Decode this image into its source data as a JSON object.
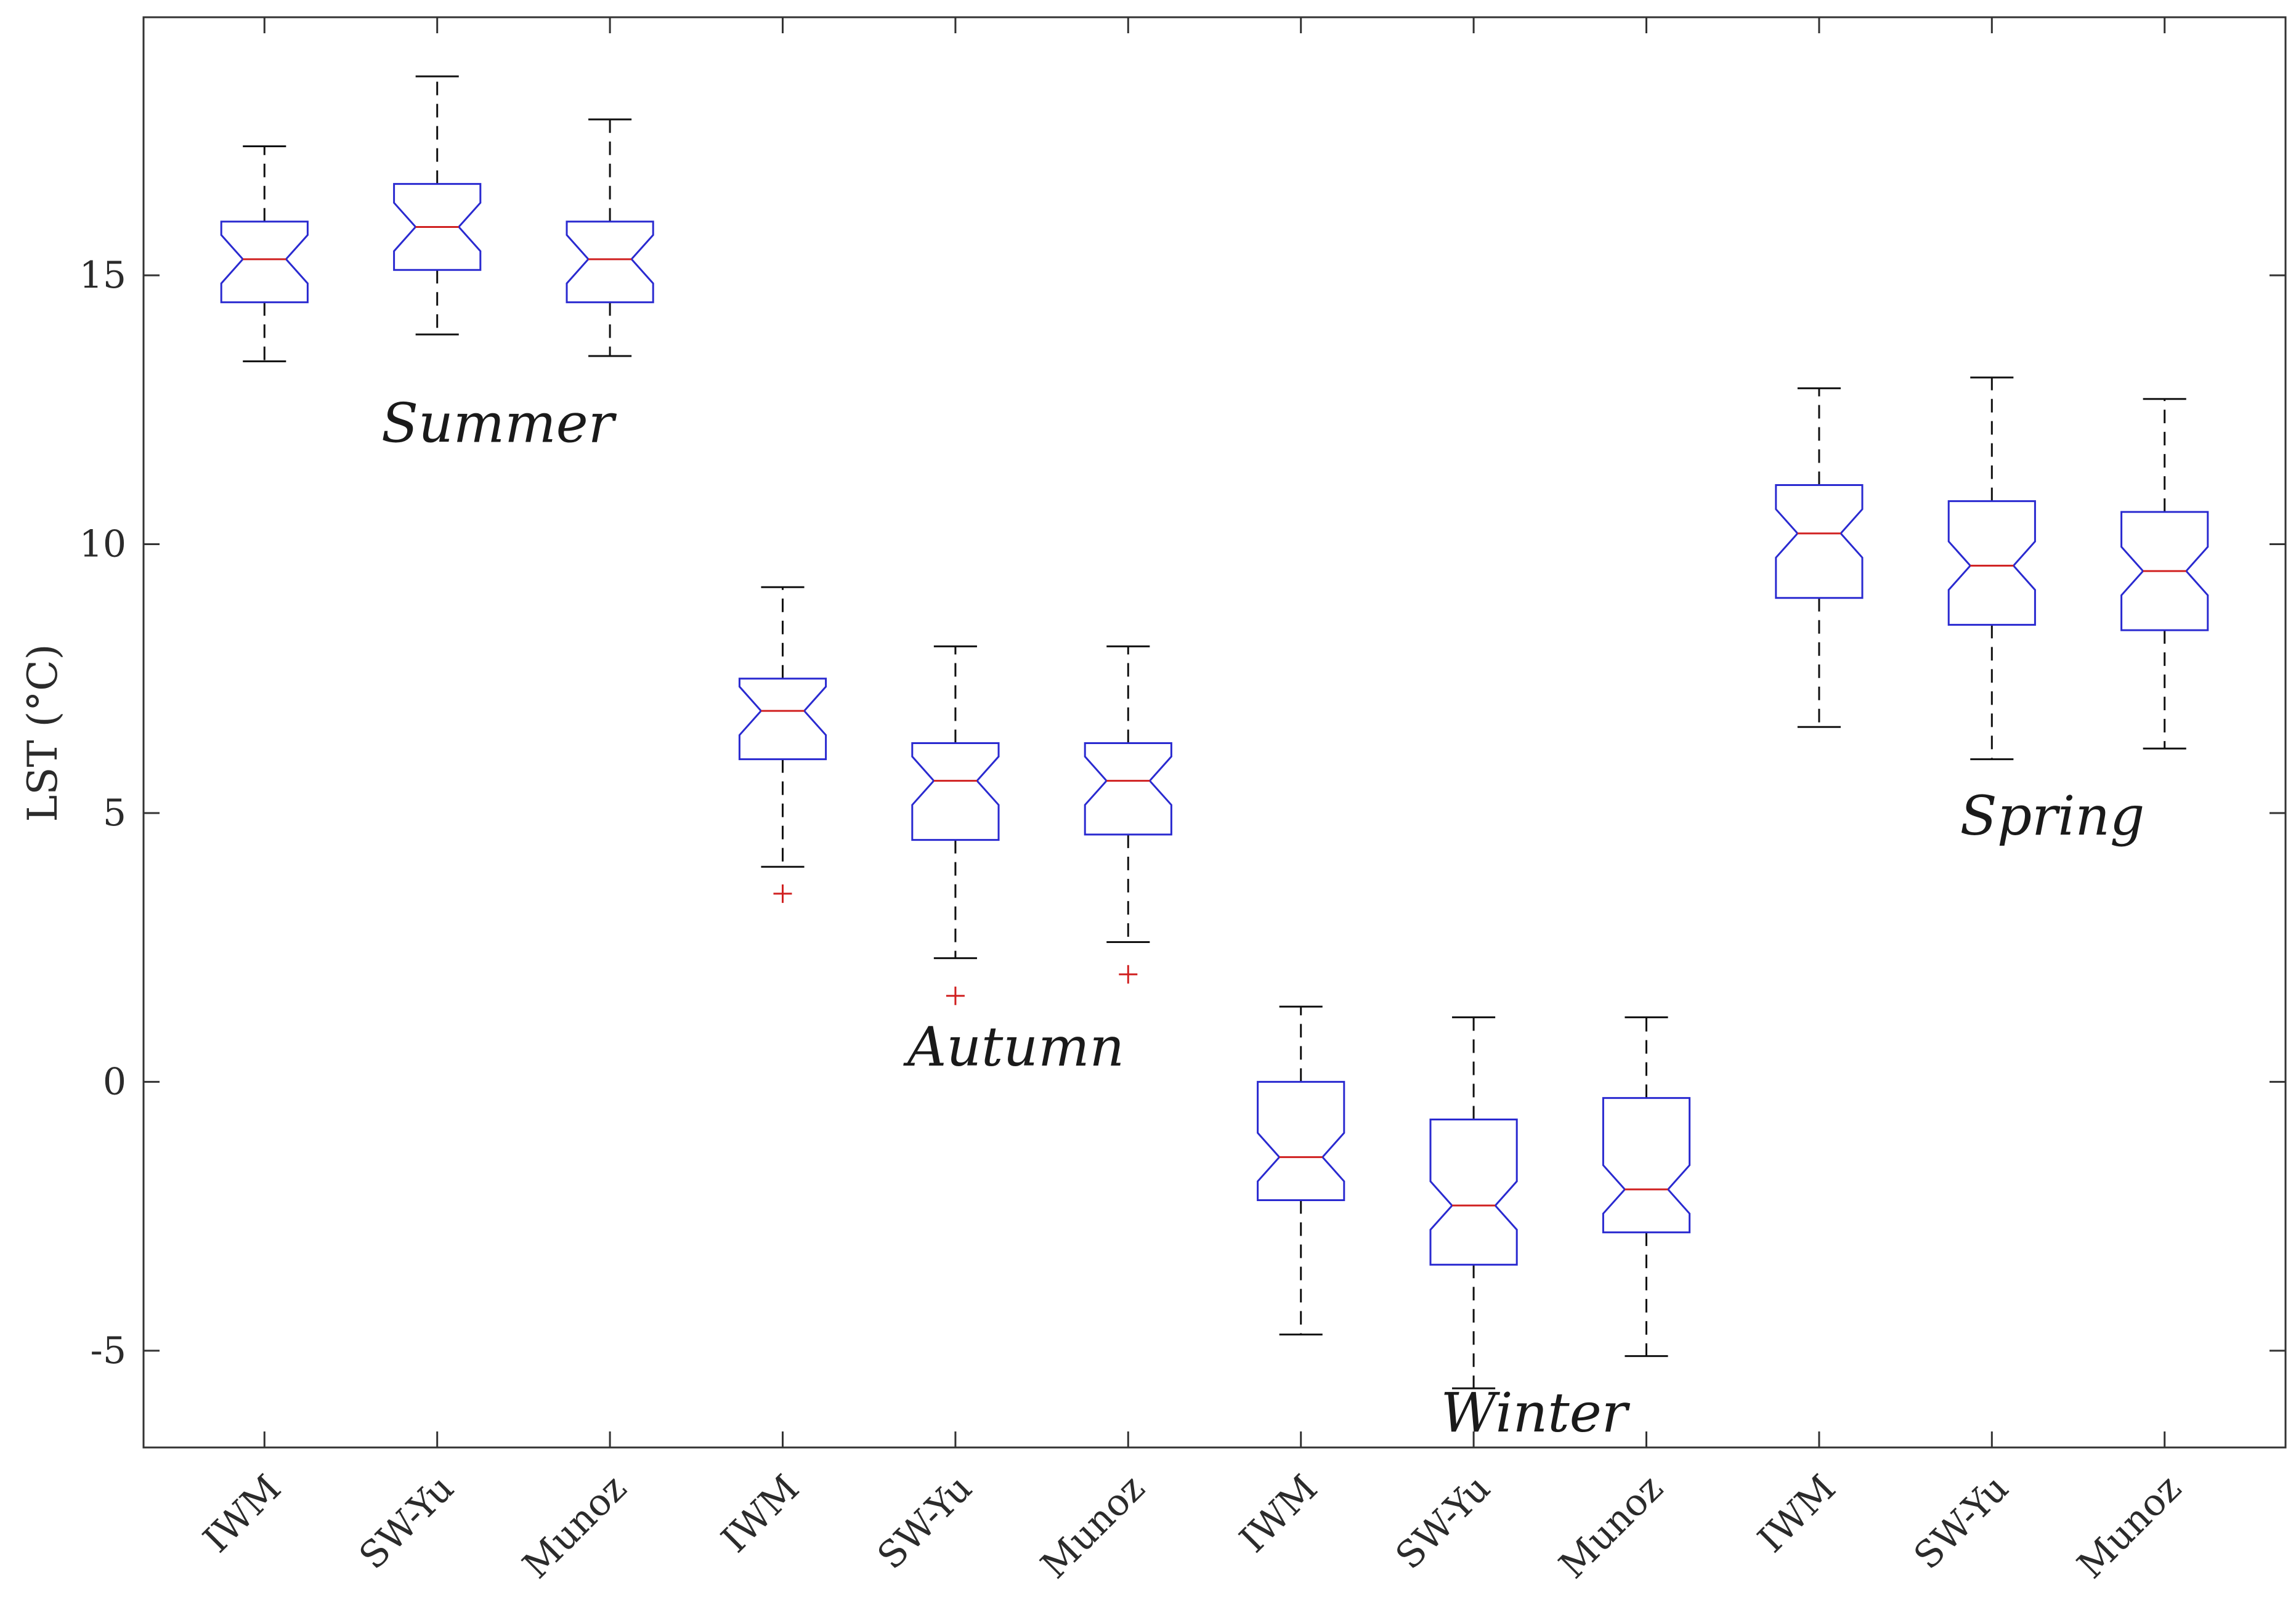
{
  "colors": {
    "box": "#2a2ad0",
    "median": "#d02020",
    "whisker": "#111111",
    "outlier": "#d02020",
    "axis": "#333333",
    "text": "#2b2b2b"
  },
  "chart_data": {
    "type": "boxplot",
    "title": "",
    "xlabel": "",
    "ylabel": "LST (°C)",
    "ylim": [
      -6.8,
      19.8
    ],
    "yticks": [
      -5,
      0,
      5,
      10,
      15
    ],
    "ytick_labels": [
      "-5",
      "0",
      "5",
      "10",
      "15"
    ],
    "notched": true,
    "categories": [
      "IWM",
      "SW-Yu",
      "Munoz",
      "IWM",
      "SW-Yu",
      "Munoz",
      "IWM",
      "SW-Yu",
      "Munoz",
      "IWM",
      "SW-Yu",
      "Munoz"
    ],
    "groups": [
      {
        "name": "Summer",
        "boxes": [
          0,
          1,
          2
        ],
        "label_at": {
          "x": 3.4,
          "y": 11.9
        }
      },
      {
        "name": "Autumn",
        "boxes": [
          3,
          4,
          5
        ],
        "label_at": {
          "x": 6.4,
          "y": 0.3
        }
      },
      {
        "name": "Winter",
        "boxes": [
          6,
          7,
          8
        ],
        "label_at": {
          "x": 9.4,
          "y": -6.5
        }
      },
      {
        "name": "Spring",
        "boxes": [
          9,
          10,
          11
        ],
        "label_at": {
          "x": 12.4,
          "y": 4.6
        }
      }
    ],
    "boxes": [
      {
        "label": "IWM",
        "season": "Summer",
        "whisker_low": 13.4,
        "q1": 14.5,
        "median": 15.3,
        "q3": 16.0,
        "whisker_high": 17.4,
        "outliers": []
      },
      {
        "label": "SW-Yu",
        "season": "Summer",
        "whisker_low": 13.9,
        "q1": 15.1,
        "median": 15.9,
        "q3": 16.7,
        "whisker_high": 18.7,
        "outliers": []
      },
      {
        "label": "Munoz",
        "season": "Summer",
        "whisker_low": 13.5,
        "q1": 14.5,
        "median": 15.3,
        "q3": 16.0,
        "whisker_high": 17.9,
        "outliers": []
      },
      {
        "label": "IWM",
        "season": "Autumn",
        "whisker_low": 4.0,
        "q1": 6.0,
        "median": 6.9,
        "q3": 7.5,
        "whisker_high": 9.2,
        "outliers": [
          3.5
        ]
      },
      {
        "label": "SW-Yu",
        "season": "Autumn",
        "whisker_low": 2.3,
        "q1": 4.5,
        "median": 5.6,
        "q3": 6.3,
        "whisker_high": 8.1,
        "outliers": [
          1.6
        ]
      },
      {
        "label": "Munoz",
        "season": "Autumn",
        "whisker_low": 2.6,
        "q1": 4.6,
        "median": 5.6,
        "q3": 6.3,
        "whisker_high": 8.1,
        "outliers": [
          2.0
        ]
      },
      {
        "label": "IWM",
        "season": "Winter",
        "whisker_low": -4.7,
        "q1": -2.2,
        "median": -1.4,
        "q3": 0.0,
        "whisker_high": 1.4,
        "outliers": []
      },
      {
        "label": "SW-Yu",
        "season": "Winter",
        "whisker_low": -5.7,
        "q1": -3.4,
        "median": -2.3,
        "q3": -0.7,
        "whisker_high": 1.2,
        "outliers": []
      },
      {
        "label": "Munoz",
        "season": "Winter",
        "whisker_low": -5.1,
        "q1": -2.8,
        "median": -2.0,
        "q3": -0.3,
        "whisker_high": 1.2,
        "outliers": []
      },
      {
        "label": "IWM",
        "season": "Spring",
        "whisker_low": 6.6,
        "q1": 9.0,
        "median": 10.2,
        "q3": 11.1,
        "whisker_high": 12.9,
        "outliers": []
      },
      {
        "label": "SW-Yu",
        "season": "Spring",
        "whisker_low": 6.0,
        "q1": 8.5,
        "median": 9.6,
        "q3": 10.8,
        "whisker_high": 13.1,
        "outliers": []
      },
      {
        "label": "Munoz",
        "season": "Spring",
        "whisker_low": 6.2,
        "q1": 8.4,
        "median": 9.5,
        "q3": 10.6,
        "whisker_high": 12.7,
        "outliers": []
      }
    ]
  }
}
